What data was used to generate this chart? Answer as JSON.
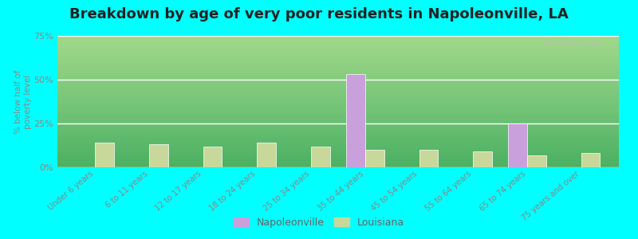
{
  "title": "Breakdown by age of very poor residents in Napoleonville, LA",
  "ylabel": "% below half of\npoverty level",
  "categories": [
    "Under 6 years",
    "6 to 11 years",
    "12 to 17 years",
    "18 to 24 years",
    "25 to 34 years",
    "35 to 44 years",
    "45 to 54 years",
    "55 to 64 years",
    "65 to 74 years",
    "75 years and over"
  ],
  "napoleonville_values": [
    0,
    0,
    0,
    0,
    0,
    53,
    0,
    0,
    25,
    0
  ],
  "louisiana_values": [
    14,
    13,
    12,
    14,
    12,
    10,
    10,
    9,
    7,
    8
  ],
  "napoleonville_color": "#c9a0dc",
  "louisiana_color": "#c8d89a",
  "background_color": "#00ffff",
  "ylim": [
    0,
    75
  ],
  "yticks": [
    0,
    25,
    50,
    75
  ],
  "ytick_labels": [
    "0%",
    "25%",
    "50%",
    "75%"
  ],
  "bar_width": 0.35,
  "title_fontsize": 13,
  "legend_labels": [
    "Napoleonville",
    "Louisiana"
  ],
  "watermark": "City-Data.com"
}
